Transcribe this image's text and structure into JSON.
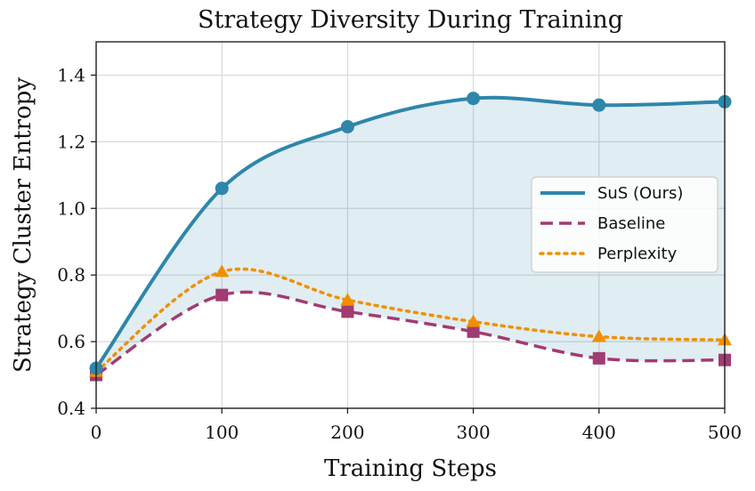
{
  "chart_data": {
    "type": "line",
    "title": "Strategy Diversity During Training",
    "xlabel": "Training Steps",
    "ylabel": "Strategy Cluster Entropy",
    "xlim": [
      0,
      500
    ],
    "ylim": [
      0.4,
      1.5
    ],
    "xticks": [
      0,
      100,
      200,
      300,
      400,
      500
    ],
    "yticks": [
      0.4,
      0.6,
      0.8,
      1.0,
      1.2,
      1.4
    ],
    "xtick_labels": [
      "0",
      "100",
      "200",
      "300",
      "400",
      "500"
    ],
    "ytick_labels": [
      "0.4",
      "0.6",
      "0.8",
      "1.0",
      "1.2",
      "1.4"
    ],
    "grid": true,
    "legend_position": "center-right",
    "shaded_region": "between SuS (Ours) and Baseline",
    "series": [
      {
        "name": "SuS (Ours)",
        "x": [
          0,
          100,
          200,
          300,
          400,
          500
        ],
        "values": [
          0.52,
          1.06,
          1.245,
          1.33,
          1.31,
          1.32
        ],
        "color": "#2e86ab",
        "line_style": "solid",
        "marker": "circle"
      },
      {
        "name": "Baseline",
        "x": [
          0,
          100,
          200,
          300,
          400,
          500
        ],
        "values": [
          0.5,
          0.74,
          0.69,
          0.63,
          0.55,
          0.545
        ],
        "color": "#a23b72",
        "line_style": "dashed",
        "marker": "square"
      },
      {
        "name": "Perplexity",
        "x": [
          0,
          100,
          200,
          300,
          400,
          500
        ],
        "values": [
          0.51,
          0.81,
          0.725,
          0.66,
          0.615,
          0.605
        ],
        "color": "#f18f01",
        "line_style": "dotted",
        "marker": "triangle"
      }
    ]
  }
}
